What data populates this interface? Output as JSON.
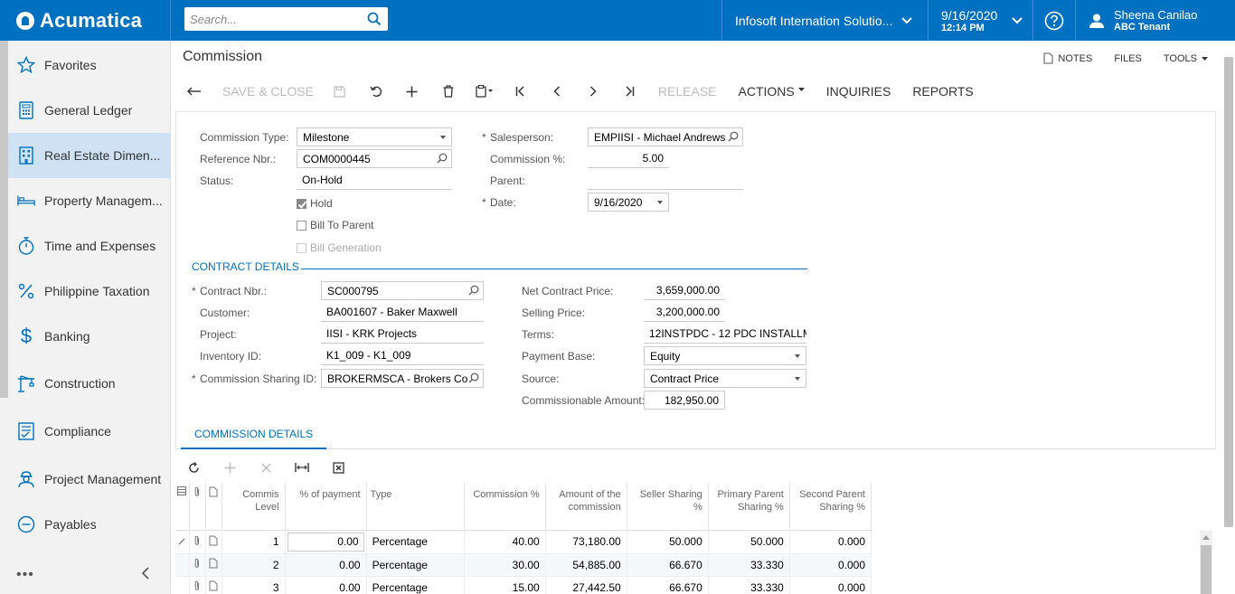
{
  "app": {
    "logo": "Acumatica",
    "search_placeholder": "Search...",
    "tenant": "Infosoft Internation Solutio...",
    "date": "9/16/2020",
    "time": "12:14 PM",
    "user_name": "Sheena Canilao",
    "user_tenant": "ABC Tenant"
  },
  "sidebar": {
    "items": [
      {
        "label": "Favorites",
        "icon": "star-icon"
      },
      {
        "label": "General Ledger",
        "icon": "calculator-icon"
      },
      {
        "label": "Real Estate Dimen...",
        "icon": "building-icon",
        "active": true
      },
      {
        "label": "Property Managem...",
        "icon": "bed-icon"
      },
      {
        "label": "Time and Expenses",
        "icon": "stopwatch-icon"
      },
      {
        "label": "Philippine Taxation",
        "icon": "percent-icon"
      },
      {
        "label": "Banking",
        "icon": "dollar-icon"
      },
      {
        "label": "Construction",
        "icon": "crane-icon"
      },
      {
        "label": "Compliance",
        "icon": "checklist-icon"
      },
      {
        "label": "Project Management",
        "icon": "worker-icon"
      },
      {
        "label": "Payables",
        "icon": "minus-circle-icon"
      }
    ],
    "more": "•••"
  },
  "page": {
    "title": "Commission",
    "notes": "NOTES",
    "files": "FILES",
    "tools": "TOOLS"
  },
  "toolbar": {
    "save_close": "SAVE & CLOSE",
    "release": "RELEASE",
    "actions": "ACTIONS",
    "inquiries": "INQUIRIES",
    "reports": "REPORTS"
  },
  "form": {
    "commission_type_label": "Commission Type:",
    "commission_type": "Milestone",
    "reference_nbr_label": "Reference Nbr.:",
    "reference_nbr": "COM0000445",
    "status_label": "Status:",
    "status": "On-Hold",
    "hold_label": "Hold",
    "bill_to_parent_label": "Bill To Parent",
    "bill_generation_label": "Bill Generation",
    "salesperson_label": "Salesperson:",
    "salesperson": "EMPIISI - Michael Andrews",
    "commission_pct_label": "Commission %:",
    "commission_pct": "5.00",
    "parent_label": "Parent:",
    "parent": "",
    "date_label": "Date:",
    "date": "9/16/2020"
  },
  "contract": {
    "section_title": "CONTRACT DETAILS",
    "contract_nbr_label": "Contract Nbr.:",
    "contract_nbr": "SC000795",
    "customer_label": "Customer:",
    "customer": "BA001607 - Baker Maxwell",
    "project_label": "Project:",
    "project": "IISI - KRK Projects",
    "inventory_label": "Inventory ID:",
    "inventory": "K1_009 - K1_009",
    "sharing_label": "Commission Sharing ID:",
    "sharing": "BROKERMSCA - Brokers Co",
    "net_price_label": "Net Contract Price:",
    "net_price": "3,659,000.00",
    "selling_price_label": "Selling Price:",
    "selling_price": "3,200,000.00",
    "terms_label": "Terms:",
    "terms": "12INSTPDC - 12 PDC INSTALLM",
    "payment_base_label": "Payment Base:",
    "payment_base": "Equity",
    "source_label": "Source:",
    "source": "Contract Price",
    "commissionable_label": "Commissionable Amount:",
    "commissionable": "182,950.00"
  },
  "details": {
    "tab": "COMMISSION DETAILS",
    "headers": {
      "level": "Commis Level",
      "pct_payment": "% of payment",
      "type": "Type",
      "commission_pct": "Commission %",
      "amount": "Amount of the commission",
      "seller": "Seller Sharing %",
      "primary": "Primary Parent Sharing %",
      "second": "Second Parent Sharing %"
    },
    "rows": [
      {
        "level": "1",
        "pct_payment": "0.00",
        "type": "Percentage",
        "commission_pct": "40.00",
        "amount": "73,180.00",
        "seller": "50.000",
        "primary": "50.000",
        "second": "0.000"
      },
      {
        "level": "2",
        "pct_payment": "0.00",
        "type": "Percentage",
        "commission_pct": "30.00",
        "amount": "54,885.00",
        "seller": "66.670",
        "primary": "33.330",
        "second": "0.000"
      },
      {
        "level": "3",
        "pct_payment": "0.00",
        "type": "Percentage",
        "commission_pct": "15.00",
        "amount": "27,442.50",
        "seller": "66.670",
        "primary": "33.330",
        "second": "0.000"
      }
    ]
  }
}
